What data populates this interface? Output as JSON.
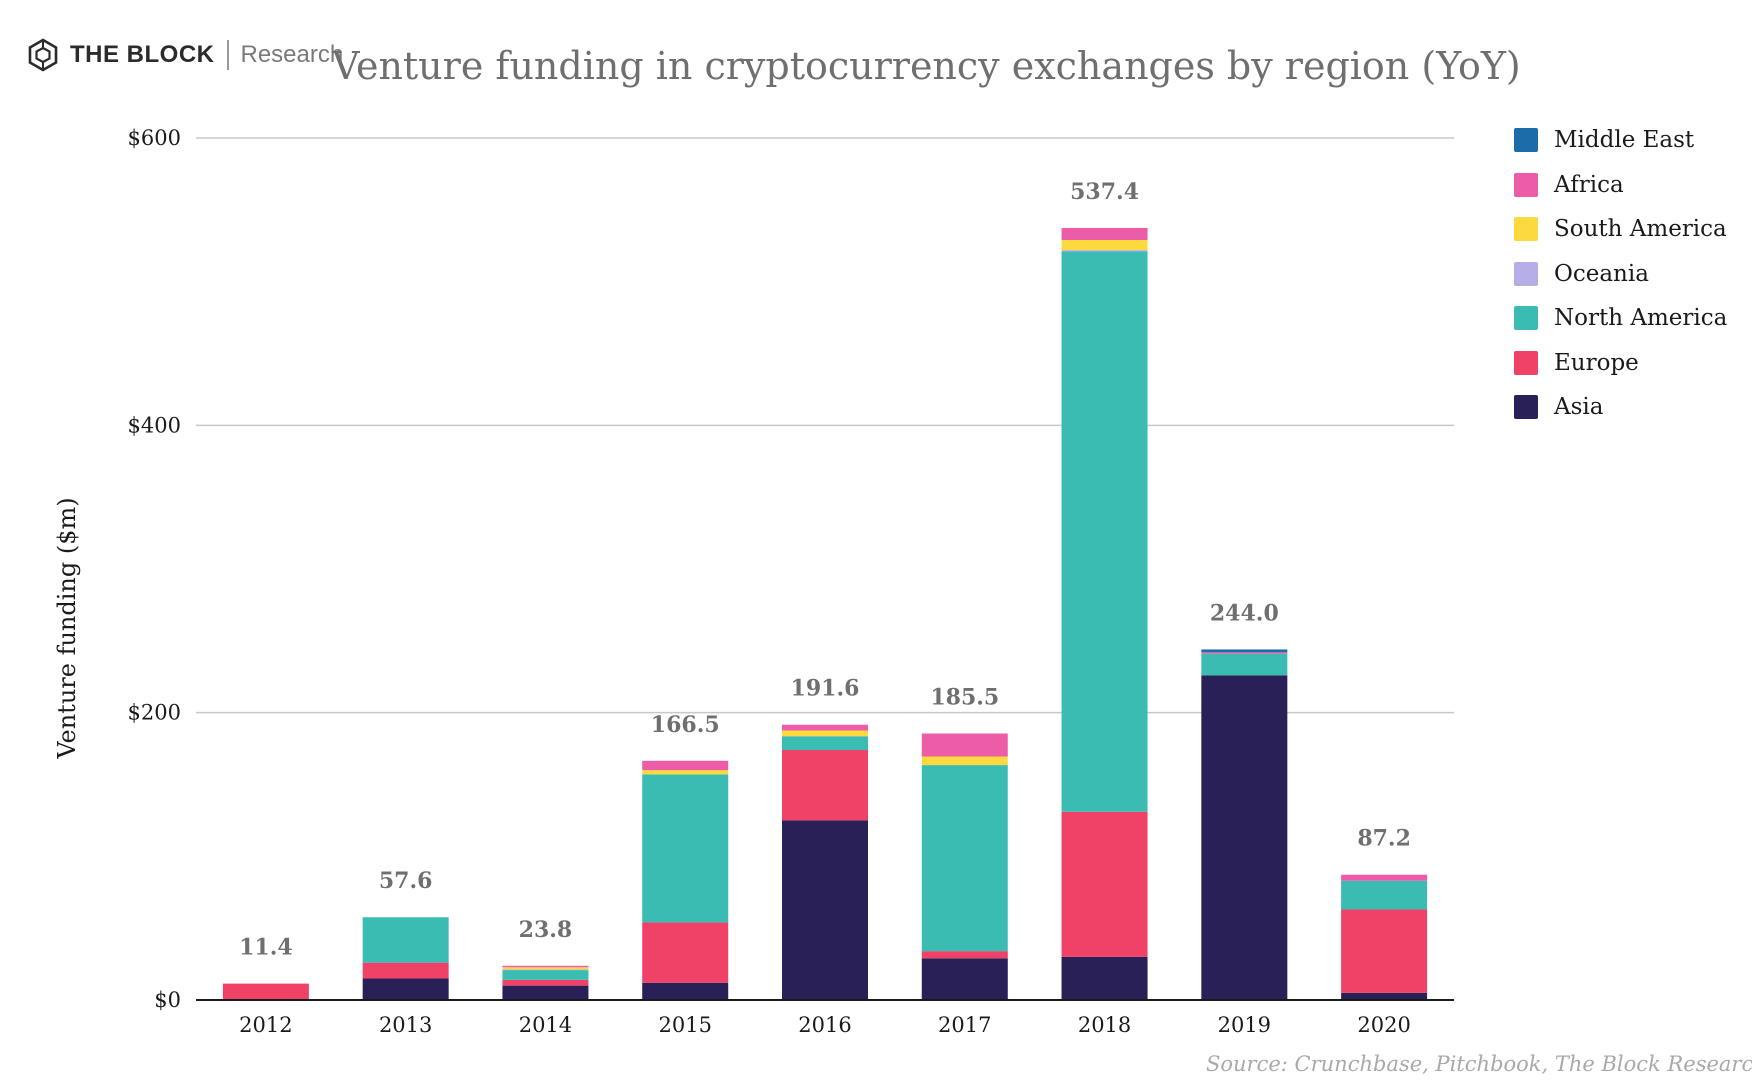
{
  "brand": {
    "name": "THE BLOCK",
    "sub": "Research",
    "icon": "cube-logo-icon"
  },
  "source": "Source: Crunchbase, Pitchbook, The Block Research",
  "colors": {
    "Middle East": "#1b6ca8",
    "Africa": "#ec5ca7",
    "South America": "#fcd93f",
    "Oceania": "#b6aee6",
    "North America": "#3bbcb2",
    "Europe": "#ef4266",
    "Asia": "#2a2058",
    "grid": "#c8c8c8",
    "axis": "#1a1a1a"
  },
  "chart_data": {
    "type": "bar",
    "stacked": true,
    "title": "Venture funding in cryptocurrency exchanges by region (YoY)",
    "xlabel": "",
    "ylabel": "Venture funding ($m)",
    "ylim": [
      0,
      600
    ],
    "yticks": [
      0,
      200,
      400,
      600
    ],
    "ytick_labels": [
      "$0",
      "$200",
      "$400",
      "$600"
    ],
    "grid": true,
    "legend_position": "right",
    "legend_order": [
      "Middle East",
      "Africa",
      "South America",
      "Oceania",
      "North America",
      "Europe",
      "Asia"
    ],
    "categories": [
      "2012",
      "2013",
      "2014",
      "2015",
      "2016",
      "2017",
      "2018",
      "2019",
      "2020"
    ],
    "totals": [
      "11.4",
      "57.6",
      "23.8",
      "166.5",
      "191.6",
      "185.5",
      "537.4",
      "244.0",
      "87.2"
    ],
    "series": [
      {
        "name": "Asia",
        "values": [
          0,
          15,
          10,
          12,
          125,
          29,
          30,
          226,
          5
        ]
      },
      {
        "name": "Europe",
        "values": [
          11.4,
          11,
          4,
          42,
          49,
          5,
          101,
          0,
          58
        ]
      },
      {
        "name": "North America",
        "values": [
          0,
          31.6,
          6.8,
          103,
          9.6,
          129.5,
          390,
          15,
          20
        ]
      },
      {
        "name": "Oceania",
        "values": [
          0,
          0,
          0.5,
          0,
          0,
          0,
          1,
          0,
          0
        ]
      },
      {
        "name": "South America",
        "values": [
          0,
          0,
          1.5,
          3,
          4,
          6,
          7,
          0,
          0
        ]
      },
      {
        "name": "Africa",
        "values": [
          0,
          0,
          1,
          6.5,
          4,
          16,
          8.4,
          1,
          4.2
        ]
      },
      {
        "name": "Middle East",
        "values": [
          0,
          0,
          0,
          0,
          0,
          0,
          0,
          2,
          0
        ]
      }
    ]
  }
}
